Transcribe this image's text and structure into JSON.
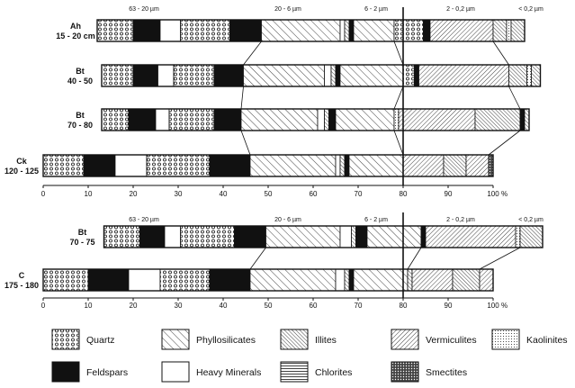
{
  "colors": {
    "ink": "#111111",
    "paper": "#ffffff"
  },
  "chart_data": {
    "type": "bar",
    "orientation": "horizontal-stacked",
    "x_unit": "%",
    "xlim": [
      0,
      100
    ],
    "x_ticks": [
      "0",
      "10",
      "20",
      "30",
      "40",
      "50",
      "60",
      "70",
      "80",
      "90",
      "100"
    ],
    "grain_size_classes": [
      "63 - 20 µm",
      "20 - 6 µm",
      "6 - 2 µm",
      "2 - 0,2 µm",
      "< 0,2 µm"
    ],
    "grain_size_classes_lower": [
      "63 - 20 µm",
      "20 - 6 µm",
      "6 - 2 µm",
      "2 - 0,2 µm",
      "< 0,2 µm"
    ],
    "minerals": [
      {
        "key": "quartz",
        "name": "Quartz",
        "pattern": "circles"
      },
      {
        "key": "feldspars",
        "name": "Feldspars",
        "pattern": "black"
      },
      {
        "key": "phyllo",
        "name": "Phyllosilicates",
        "pattern": "diag-wide"
      },
      {
        "key": "heavy",
        "name": "Heavy Minerals",
        "pattern": "white"
      },
      {
        "key": "illites",
        "name": "Illites",
        "pattern": "diag-dense"
      },
      {
        "key": "chlorites",
        "name": "Chlorites",
        "pattern": "horizontal"
      },
      {
        "key": "vermiculites",
        "name": "Vermiculites",
        "pattern": "diag-back"
      },
      {
        "key": "smectites",
        "name": "Smectites",
        "pattern": "cross"
      },
      {
        "key": "kaolinites",
        "name": "Kaolinites",
        "pattern": "dots"
      }
    ],
    "profiles": [
      {
        "horizons": [
          {
            "label": [
              "Ah",
              "15 - 20 cm"
            ],
            "start": 12,
            "segments": [
              [
                "quartz",
                8
              ],
              [
                "feldspars",
                6
              ],
              [
                "heavy",
                4.5
              ],
              [
                "quartz",
                11
              ],
              [
                "feldspars",
                7
              ],
              [
                "phyllo",
                17.5
              ],
              [
                "heavy",
                1
              ],
              [
                "illites",
                1
              ],
              [
                "feldspars",
                1
              ],
              [
                "phyllo",
                9
              ],
              [
                "quartz",
                6.5
              ],
              [
                "feldspars",
                1.5
              ],
              [
                "vermiculites",
                14
              ],
              [
                "illites",
                3
              ],
              [
                "kaolinites",
                1
              ],
              [
                "illites",
                3
              ]
            ]
          },
          {
            "label": [
              "Bt",
              "40 - 50"
            ],
            "start": 13,
            "segments": [
              [
                "quartz",
                7
              ],
              [
                "feldspars",
                5.5
              ],
              [
                "heavy",
                3.5
              ],
              [
                "quartz",
                9
              ],
              [
                "feldspars",
                6.5
              ],
              [
                "phyllo",
                18
              ],
              [
                "heavy",
                1.5
              ],
              [
                "illites",
                1
              ],
              [
                "feldspars",
                1
              ],
              [
                "phyllo",
                14
              ],
              [
                "quartz",
                2.5
              ],
              [
                "feldspars",
                1
              ],
              [
                "vermiculites",
                20
              ],
              [
                "illites",
                4
              ],
              [
                "kaolinites",
                1
              ],
              [
                "illites",
                2
              ]
            ]
          },
          {
            "label": [
              "Bt",
              "70 - 80"
            ],
            "start": 13,
            "segments": [
              [
                "quartz",
                6
              ],
              [
                "feldspars",
                6
              ],
              [
                "heavy",
                3
              ],
              [
                "quartz",
                10
              ],
              [
                "feldspars",
                6
              ],
              [
                "phyllo",
                17
              ],
              [
                "heavy",
                1.5
              ],
              [
                "illites",
                1
              ],
              [
                "feldspars",
                1.5
              ],
              [
                "phyllo",
                13
              ],
              [
                "kaolinites",
                1
              ],
              [
                "vermiculites",
                17
              ],
              [
                "illites",
                10
              ],
              [
                "feldspars",
                1
              ],
              [
                "illites",
                1
              ]
            ]
          },
          {
            "label": [
              "Ck",
              "120 - 125"
            ],
            "start": 0,
            "segments": [
              [
                "quartz",
                9
              ],
              [
                "feldspars",
                7
              ],
              [
                "heavy",
                7
              ],
              [
                "quartz",
                14
              ],
              [
                "feldspars",
                9
              ],
              [
                "phyllo",
                19
              ],
              [
                "heavy",
                1
              ],
              [
                "illites",
                1
              ],
              [
                "feldspars",
                1
              ],
              [
                "phyllo",
                12
              ],
              [
                "vermiculites",
                9
              ],
              [
                "illites",
                5
              ],
              [
                "vermiculites",
                5
              ],
              [
                "smectites",
                1
              ]
            ]
          }
        ]
      },
      {
        "horizons": [
          {
            "label": [
              "Bt",
              "70 - 75"
            ],
            "start": 13.5,
            "segments": [
              [
                "quartz",
                8
              ],
              [
                "feldspars",
                5.5
              ],
              [
                "heavy",
                3.5
              ],
              [
                "quartz",
                12
              ],
              [
                "feldspars",
                7
              ],
              [
                "phyllo",
                16.5
              ],
              [
                "heavy",
                2.5
              ],
              [
                "illites",
                1
              ],
              [
                "feldspars",
                2.5
              ],
              [
                "phyllo",
                12
              ],
              [
                "feldspars",
                1
              ],
              [
                "vermiculites",
                20
              ],
              [
                "kaolinites",
                1
              ],
              [
                "illites",
                5
              ]
            ]
          },
          {
            "label": [
              "C",
              "175 - 180"
            ],
            "start": 0,
            "segments": [
              [
                "quartz",
                10
              ],
              [
                "feldspars",
                9
              ],
              [
                "heavy",
                7
              ],
              [
                "quartz",
                11
              ],
              [
                "feldspars",
                9
              ],
              [
                "phyllo",
                19
              ],
              [
                "heavy",
                2
              ],
              [
                "illites",
                1
              ],
              [
                "feldspars",
                1
              ],
              [
                "phyllo",
                12
              ],
              [
                "illites",
                1
              ],
              [
                "vermiculites",
                9
              ],
              [
                "illites",
                6
              ],
              [
                "vermiculites",
                3
              ]
            ]
          }
        ]
      }
    ],
    "grid": false,
    "legend_position": "bottom"
  }
}
